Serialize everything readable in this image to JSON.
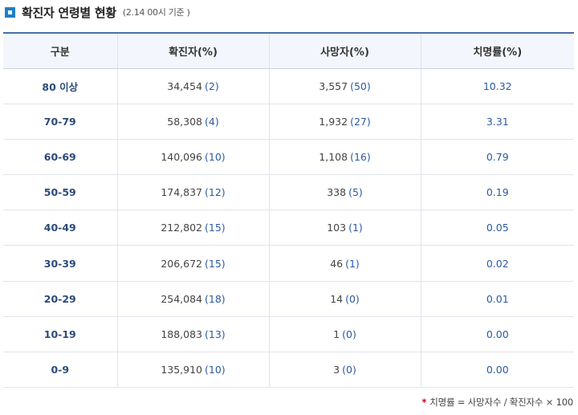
{
  "heading": {
    "title": "확진자 연령별 현황",
    "subtitle": "(2.14 00시 기준 )"
  },
  "table": {
    "headers": [
      "구분",
      "확진자(%)",
      "사망자(%)",
      "치명률(%)"
    ],
    "rows": [
      {
        "group": "80 이상",
        "confirmed": "34,454",
        "confirmed_pct": "(2)",
        "deaths": "3,557",
        "deaths_pct": "(50)",
        "fatality": "10.32"
      },
      {
        "group": "70-79",
        "confirmed": "58,308",
        "confirmed_pct": "(4)",
        "deaths": "1,932",
        "deaths_pct": "(27)",
        "fatality": "3.31"
      },
      {
        "group": "60-69",
        "confirmed": "140,096",
        "confirmed_pct": "(10)",
        "deaths": "1,108",
        "deaths_pct": "(16)",
        "fatality": "0.79"
      },
      {
        "group": "50-59",
        "confirmed": "174,837",
        "confirmed_pct": "(12)",
        "deaths": "338",
        "deaths_pct": "(5)",
        "fatality": "0.19"
      },
      {
        "group": "40-49",
        "confirmed": "212,802",
        "confirmed_pct": "(15)",
        "deaths": "103",
        "deaths_pct": "(1)",
        "fatality": "0.05"
      },
      {
        "group": "30-39",
        "confirmed": "206,672",
        "confirmed_pct": "(15)",
        "deaths": "46",
        "deaths_pct": "(1)",
        "fatality": "0.02"
      },
      {
        "group": "20-29",
        "confirmed": "254,084",
        "confirmed_pct": "(18)",
        "deaths": "14",
        "deaths_pct": "(0)",
        "fatality": "0.01"
      },
      {
        "group": "10-19",
        "confirmed": "188,083",
        "confirmed_pct": "(13)",
        "deaths": "1",
        "deaths_pct": "(0)",
        "fatality": "0.00"
      },
      {
        "group": "0-9",
        "confirmed": "135,910",
        "confirmed_pct": "(10)",
        "deaths": "3",
        "deaths_pct": "(0)",
        "fatality": "0.00"
      }
    ]
  },
  "footnote": {
    "marker": "*",
    "text": "치명률 = 사망자수 / 확진자수 × 100"
  },
  "colors": {
    "accent": "#1e7fc7",
    "header_bg": "#f3f6fc",
    "value_blue": "#2b5aa3",
    "footnote_marker": "#d0021b"
  }
}
